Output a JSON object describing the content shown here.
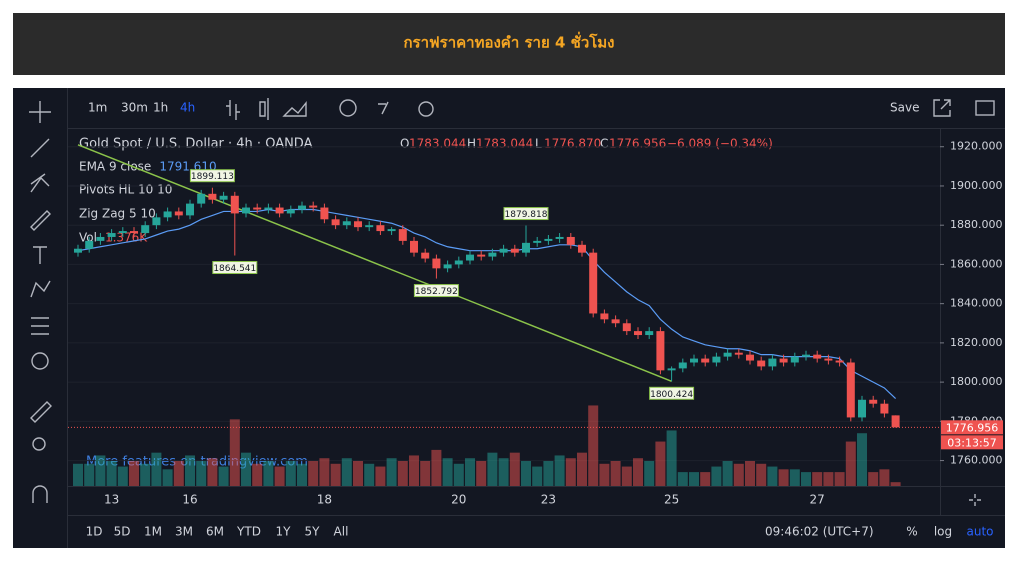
{
  "header": {
    "title": "กราฟราคาทองคำ ราย 4 ชั่วโมง"
  },
  "toolbar": {
    "intervals": [
      "1m",
      "30m",
      "1h",
      "4h"
    ],
    "save": "Save"
  },
  "legend": {
    "symbol": "Gold Spot / U.S. Dollar · 4h · OANDA",
    "ohlc": [
      {
        "key": "O",
        "value": "1783.044"
      },
      {
        "key": "H",
        "value": "1783.044"
      },
      {
        "key": "L",
        "value": "1776.870"
      },
      {
        "key": "C",
        "value": "1776.956"
      }
    ],
    "change": "−6.089 (−0.34%)"
  },
  "indicators": [
    {
      "name": "EMA 9 close",
      "value": "1791.610"
    },
    {
      "name": "Pivots HL 10 10"
    },
    {
      "name": "Zig Zag 5 10"
    },
    {
      "name": "Vol",
      "value": "1.376K"
    }
  ],
  "watermark": "More features on tradingview.com",
  "countdown": "03:13:57",
  "bottom_bar": {
    "ranges": [
      "1D",
      "5D",
      "1M",
      "3M",
      "6M",
      "YTD",
      "1Y",
      "5Y",
      "All"
    ],
    "time": "09:46:02 (UTC+7)",
    "options": [
      "%",
      "log",
      "auto"
    ]
  },
  "chart_data": {
    "type": "candlestick",
    "categories": [
      null,
      null,
      null,
      "13",
      null,
      null,
      null,
      null,
      null,
      null,
      "16",
      null,
      null,
      null,
      null,
      null,
      null,
      null,
      null,
      null,
      null,
      null,
      "18",
      null,
      null,
      null,
      null,
      null,
      null,
      null,
      null,
      null,
      null,
      null,
      "20",
      null,
      null,
      null,
      null,
      null,
      null,
      null,
      "23",
      null,
      null,
      null,
      null,
      null,
      null,
      null,
      null,
      null,
      null,
      "25",
      null,
      null,
      null,
      null,
      null,
      null,
      null,
      null,
      null,
      null,
      null,
      null,
      "27",
      null,
      null,
      null,
      null,
      null,
      null,
      null
    ],
    "open": [
      1866,
      1868,
      1872,
      1874,
      1876,
      1877,
      1876,
      1880,
      1884,
      1887,
      1885,
      1891,
      1896,
      1893,
      1895,
      1886,
      1889,
      1888,
      1889,
      1886,
      1888,
      1890,
      1889,
      1883,
      1880,
      1882,
      1879,
      1880,
      1877,
      1878,
      1872,
      1866,
      1863,
      1858,
      1860,
      1862,
      1865,
      1864,
      1866,
      1868,
      1866,
      1871,
      1872,
      1873,
      1874,
      1870,
      1866,
      1835,
      1832,
      1830,
      1826,
      1824,
      1826,
      1806,
      1807,
      1810,
      1812,
      1810,
      1813,
      1815,
      1814,
      1811,
      1808,
      1812,
      1810,
      1813,
      1814,
      1812,
      1811,
      1810,
      1782,
      1791,
      1789,
      1783.044
    ],
    "high": [
      1870,
      1874,
      1876,
      1878,
      1879,
      1879,
      1882,
      1886,
      1889,
      1889,
      1893,
      1898,
      1899.113,
      1897,
      1897,
      1891,
      1891,
      1891,
      1891,
      1890,
      1892,
      1892,
      1891,
      1885,
      1884,
      1884,
      1882,
      1882,
      1879,
      1880,
      1874,
      1868,
      1865,
      1862,
      1864,
      1867,
      1867,
      1868,
      1870,
      1870,
      1879.818,
      1874,
      1875,
      1876,
      1876,
      1872,
      1868,
      1837,
      1834,
      1832,
      1828,
      1828,
      1828,
      1808,
      1812,
      1814,
      1814,
      1815,
      1817,
      1817,
      1816,
      1813,
      1814,
      1814,
      1815,
      1816,
      1816,
      1814,
      1813,
      1812,
      1793,
      1793,
      1791,
      1783.044
    ],
    "low": [
      1864,
      1866,
      1870,
      1872,
      1874,
      1874,
      1874,
      1878,
      1882,
      1883,
      1883,
      1889,
      1891,
      1891,
      1864.541,
      1884,
      1886,
      1886,
      1884,
      1884,
      1886,
      1887,
      1881,
      1878,
      1878,
      1877,
      1877,
      1875,
      1875,
      1870,
      1864,
      1861,
      1852.792,
      1856,
      1858,
      1860,
      1862,
      1862,
      1864,
      1864,
      1864,
      1869,
      1870,
      1871,
      1868,
      1864,
      1833,
      1830,
      1828,
      1824,
      1822,
      1822,
      1804,
      1800.424,
      1805,
      1808,
      1808,
      1808,
      1811,
      1812,
      1809,
      1806,
      1806,
      1808,
      1808,
      1811,
      1810,
      1809,
      1808,
      1780,
      1780,
      1787,
      1782,
      1776.87
    ],
    "close": [
      1868,
      1872,
      1874,
      1876,
      1877,
      1876,
      1880,
      1884,
      1887,
      1885,
      1891,
      1896,
      1893,
      1895,
      1886,
      1889,
      1888,
      1889,
      1886,
      1888,
      1890,
      1889,
      1883,
      1880,
      1882,
      1879,
      1880,
      1877,
      1878,
      1872,
      1866,
      1863,
      1858,
      1860,
      1862,
      1865,
      1864,
      1866,
      1868,
      1866,
      1871,
      1872,
      1873,
      1874,
      1870,
      1866,
      1835,
      1832,
      1830,
      1826,
      1824,
      1826,
      1806,
      1807,
      1810,
      1812,
      1810,
      1813,
      1815,
      1814,
      1811,
      1808,
      1812,
      1810,
      1813,
      1814,
      1812,
      1811,
      1810,
      1782,
      1791,
      1789,
      1784,
      1776.956
    ],
    "up_color": "#26a69a",
    "down_color": "#ef5350",
    "ema": {
      "color": "#5b9cf6",
      "values": [
        1867,
        1868,
        1869,
        1870,
        1871,
        1872,
        1873,
        1875,
        1877,
        1878,
        1880,
        1883,
        1885,
        1887,
        1887,
        1887,
        1887,
        1888,
        1887,
        1888,
        1888,
        1888,
        1887,
        1886,
        1885,
        1884,
        1883,
        1882,
        1881,
        1879,
        1876,
        1874,
        1871,
        1869,
        1868,
        1867,
        1867,
        1867,
        1867,
        1867,
        1868,
        1868,
        1869,
        1870,
        1870,
        1869,
        1862,
        1856,
        1851,
        1846,
        1842,
        1839,
        1832,
        1827,
        1823,
        1821,
        1819,
        1818,
        1817,
        1817,
        1816,
        1814,
        1814,
        1813,
        1813,
        1813,
        1813,
        1813,
        1812,
        1806,
        1803,
        1800,
        1797,
        1791.61
      ]
    },
    "zigzag": {
      "color": "#8bc34a",
      "x": [
        0,
        53
      ],
      "values": [
        1921,
        1800.424
      ]
    },
    "pivots": {
      "x": [
        12,
        14,
        32,
        40,
        53
      ],
      "values": [
        1899.113,
        1864.541,
        1852.792,
        1879.818,
        1800.424
      ],
      "position": [
        "above",
        "below",
        "below",
        "above",
        "below"
      ]
    },
    "volume": {
      "ylim": [
        0,
        36
      ],
      "values": [
        8,
        8,
        11,
        9,
        7,
        9,
        8,
        12,
        6,
        9,
        11,
        9,
        10,
        7,
        24,
        12,
        8,
        9,
        7,
        9,
        8,
        9,
        10,
        8,
        10,
        9,
        8,
        7,
        10,
        9,
        11,
        9,
        13,
        10,
        8,
        10,
        9,
        12,
        10,
        12,
        9,
        7,
        9,
        11,
        10,
        12,
        29,
        8,
        9,
        7,
        10,
        9,
        16,
        20,
        5,
        5,
        5,
        7,
        9,
        8,
        9,
        8,
        7,
        6,
        6,
        5,
        5,
        5,
        5,
        16,
        19,
        5,
        6,
        1.376
      ]
    },
    "ylim": [
      1745,
      1927
    ],
    "yticks": [
      {
        "value": 1760,
        "label": "1760.000"
      },
      {
        "value": 1780,
        "label": "1780.000"
      },
      {
        "value": 1800,
        "label": "1800.000"
      },
      {
        "value": 1820,
        "label": "1820.000"
      },
      {
        "value": 1840,
        "label": "1840.000"
      },
      {
        "value": 1860,
        "label": "1860.000"
      },
      {
        "value": 1880,
        "label": "1880.000"
      },
      {
        "value": 1900,
        "label": "1900.000"
      },
      {
        "value": 1920,
        "label": "1920.000"
      }
    ],
    "grid": true
  }
}
